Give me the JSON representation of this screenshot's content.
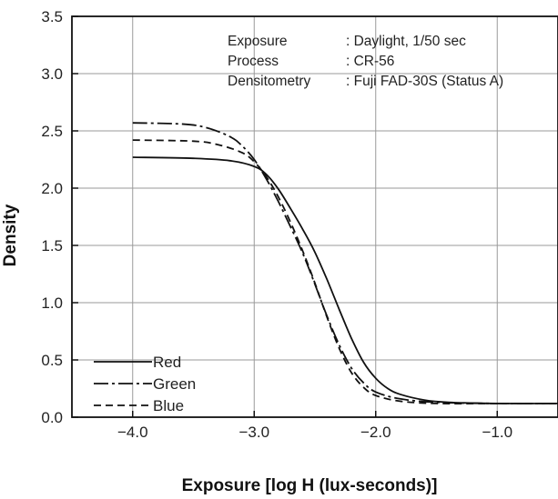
{
  "chart_data": {
    "type": "line",
    "xlabel": "Exposure [log H (lux-seconds)]",
    "ylabel": "Density",
    "xlim": [
      -4.5,
      -0.5
    ],
    "ylim": [
      0.0,
      3.5
    ],
    "x_ticks": [
      -4.0,
      -3.0,
      -2.0,
      -1.0
    ],
    "x_tick_labels": [
      "−4.0",
      "−3.0",
      "−2.0",
      "−1.0"
    ],
    "y_ticks": [
      0.0,
      0.5,
      1.0,
      1.5,
      2.0,
      2.5,
      3.0,
      3.5
    ],
    "y_tick_labels": [
      "0.0",
      "0.5",
      "1.0",
      "1.5",
      "2.0",
      "2.5",
      "3.0",
      "3.5"
    ],
    "grid": true,
    "legend_position": "bottom-left",
    "info_block": [
      {
        "label": "Exposure",
        "value": ": Daylight, 1/50 sec"
      },
      {
        "label": "Process",
        "value": ": CR-56"
      },
      {
        "label": "Densitometry",
        "value": ": Fuji FAD-30S (Status A)"
      }
    ],
    "series": [
      {
        "name": "Red",
        "dash": "solid",
        "points": [
          [
            -4.0,
            2.27
          ],
          [
            -3.5,
            2.26
          ],
          [
            -3.2,
            2.24
          ],
          [
            -3.0,
            2.19
          ],
          [
            -2.9,
            2.12
          ],
          [
            -2.8,
            1.99
          ],
          [
            -2.7,
            1.82
          ],
          [
            -2.6,
            1.64
          ],
          [
            -2.5,
            1.44
          ],
          [
            -2.4,
            1.2
          ],
          [
            -2.3,
            0.94
          ],
          [
            -2.2,
            0.69
          ],
          [
            -2.1,
            0.48
          ],
          [
            -2.0,
            0.34
          ],
          [
            -1.9,
            0.25
          ],
          [
            -1.8,
            0.2
          ],
          [
            -1.6,
            0.15
          ],
          [
            -1.4,
            0.13
          ],
          [
            -1.0,
            0.12
          ],
          [
            -0.5,
            0.12
          ]
        ]
      },
      {
        "name": "Green",
        "dash": "dashdot",
        "points": [
          [
            -4.0,
            2.57
          ],
          [
            -3.6,
            2.56
          ],
          [
            -3.4,
            2.53
          ],
          [
            -3.2,
            2.45
          ],
          [
            -3.1,
            2.37
          ],
          [
            -3.0,
            2.25
          ],
          [
            -2.9,
            2.08
          ],
          [
            -2.8,
            1.88
          ],
          [
            -2.7,
            1.66
          ],
          [
            -2.6,
            1.43
          ],
          [
            -2.5,
            1.16
          ],
          [
            -2.4,
            0.88
          ],
          [
            -2.3,
            0.63
          ],
          [
            -2.2,
            0.43
          ],
          [
            -2.1,
            0.3
          ],
          [
            -2.0,
            0.22
          ],
          [
            -1.8,
            0.16
          ],
          [
            -1.5,
            0.13
          ],
          [
            -1.0,
            0.12
          ],
          [
            -0.5,
            0.12
          ]
        ]
      },
      {
        "name": "Blue",
        "dash": "dashed",
        "points": [
          [
            -4.0,
            2.42
          ],
          [
            -3.5,
            2.41
          ],
          [
            -3.3,
            2.38
          ],
          [
            -3.1,
            2.31
          ],
          [
            -3.0,
            2.23
          ],
          [
            -2.9,
            2.1
          ],
          [
            -2.8,
            1.92
          ],
          [
            -2.7,
            1.7
          ],
          [
            -2.6,
            1.45
          ],
          [
            -2.5,
            1.17
          ],
          [
            -2.4,
            0.87
          ],
          [
            -2.3,
            0.6
          ],
          [
            -2.2,
            0.39
          ],
          [
            -2.1,
            0.26
          ],
          [
            -2.0,
            0.19
          ],
          [
            -1.8,
            0.14
          ],
          [
            -1.5,
            0.12
          ],
          [
            -1.0,
            0.12
          ],
          [
            -0.5,
            0.12
          ]
        ]
      }
    ]
  }
}
